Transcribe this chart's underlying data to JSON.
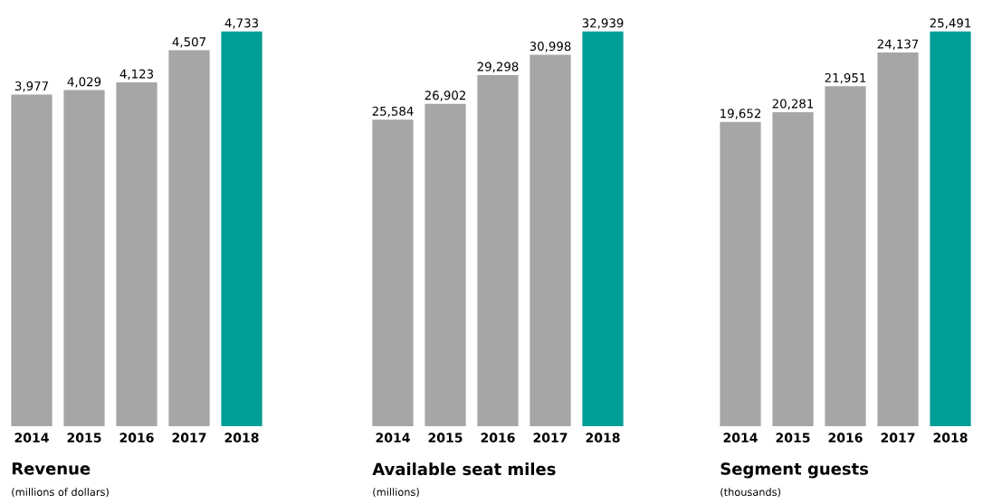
{
  "chart_data": [
    {
      "type": "bar",
      "title": "Revenue",
      "subtitle": "(millions of dollars)",
      "categories": [
        "2014",
        "2015",
        "2016",
        "2017",
        "2018"
      ],
      "values": [
        3977,
        4029,
        4123,
        4507,
        4733
      ],
      "value_labels": [
        "3,977",
        "4,029",
        "4,123",
        "4,507",
        "4,733"
      ],
      "colors": [
        "#a6a6a6",
        "#a6a6a6",
        "#a6a6a6",
        "#a6a6a6",
        "#009e96"
      ]
    },
    {
      "type": "bar",
      "title": "Available seat miles",
      "subtitle": "(millions)",
      "categories": [
        "2014",
        "2015",
        "2016",
        "2017",
        "2018"
      ],
      "values": [
        25584,
        26902,
        29298,
        30998,
        32939
      ],
      "value_labels": [
        "25,584",
        "26,902",
        "29,298",
        "30,998",
        "32,939"
      ],
      "colors": [
        "#a6a6a6",
        "#a6a6a6",
        "#a6a6a6",
        "#a6a6a6",
        "#009e96"
      ]
    },
    {
      "type": "bar",
      "title": "Segment guests",
      "subtitle": "(thousands)",
      "categories": [
        "2014",
        "2015",
        "2016",
        "2017",
        "2018"
      ],
      "values": [
        19652,
        20281,
        21951,
        24137,
        25491
      ],
      "value_labels": [
        "19,652",
        "20,281",
        "21,951",
        "24,137",
        "25,491"
      ],
      "colors": [
        "#a6a6a6",
        "#a6a6a6",
        "#a6a6a6",
        "#a6a6a6",
        "#009e96"
      ]
    }
  ]
}
